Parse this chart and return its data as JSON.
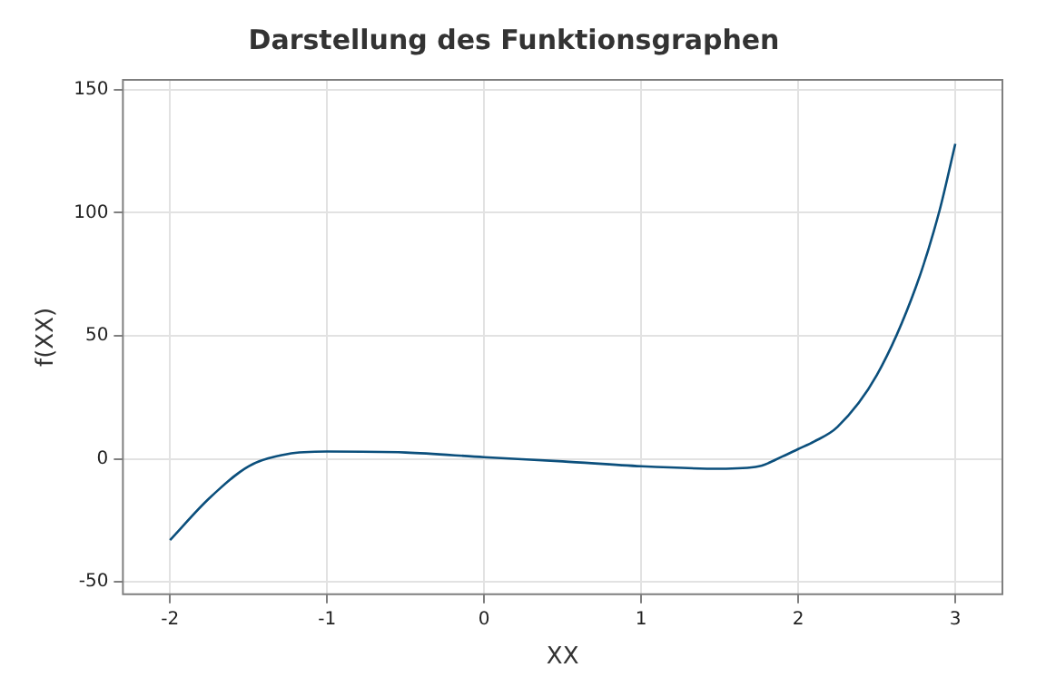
{
  "chart_data": {
    "type": "line",
    "title": "Darstellung des Funktionsgraphen",
    "xlabel": "XX",
    "ylabel": "f(XX)",
    "series": [
      {
        "color": "#0b4f7c",
        "x": [
          -2,
          -1.75,
          -1.5,
          -1.25,
          -1,
          -0.5,
          0,
          0.5,
          1,
          1.5,
          1.75,
          1.9,
          2,
          2.1,
          2.25,
          2.5,
          2.75,
          2.9,
          3
        ],
        "values": [
          -33,
          -16,
          -3,
          2,
          3,
          2.6,
          0.7,
          -1,
          -3,
          -4,
          -3,
          1,
          4,
          7,
          13,
          34,
          70,
          101,
          128
        ]
      }
    ],
    "xlim": [
      -2.3,
      3.3
    ],
    "xticks": [
      -2,
      -1,
      0,
      1,
      2,
      3
    ],
    "ylim": [
      -55,
      154
    ],
    "yticks": [
      -50,
      0,
      50,
      100,
      150
    ],
    "grid": true,
    "marker": "none",
    "line_style": "solid"
  }
}
